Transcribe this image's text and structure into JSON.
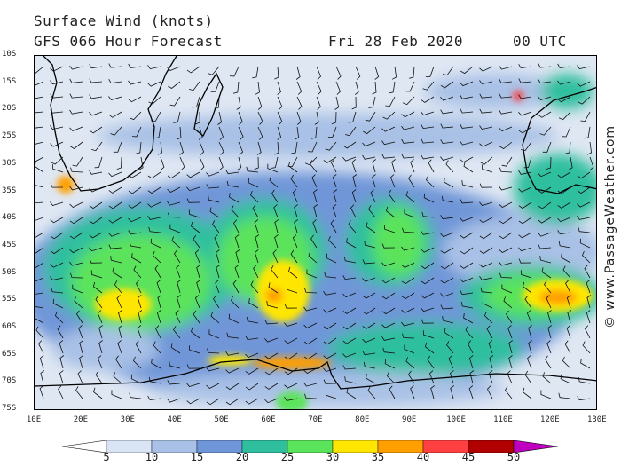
{
  "title": "Surface Wind (knots)",
  "model_line": "GFS 066 Hour Forecast",
  "date": "Fri 28 Feb 2020",
  "time": "00 UTC",
  "credit": "© www.PassageWeather.com",
  "lat_labels": [
    "10S",
    "15S",
    "20S",
    "25S",
    "30S",
    "35S",
    "40S",
    "45S",
    "50S",
    "55S",
    "60S",
    "65S",
    "70S",
    "75S"
  ],
  "lon_labels": [
    "10E",
    "20E",
    "30E",
    "40E",
    "50E",
    "60E",
    "70E",
    "80E",
    "90E",
    "100E",
    "110E",
    "120E",
    "130E"
  ],
  "legend": {
    "labels": [
      "5",
      "10",
      "15",
      "20",
      "25",
      "30",
      "35",
      "40",
      "45",
      "50"
    ],
    "colors": [
      "#ffffff",
      "#d9e4f4",
      "#a9c1e6",
      "#6f96d8",
      "#2fbf9f",
      "#5be35b",
      "#ffe600",
      "#ff9f00",
      "#ff4040",
      "#b00000",
      "#c000c0"
    ]
  }
}
